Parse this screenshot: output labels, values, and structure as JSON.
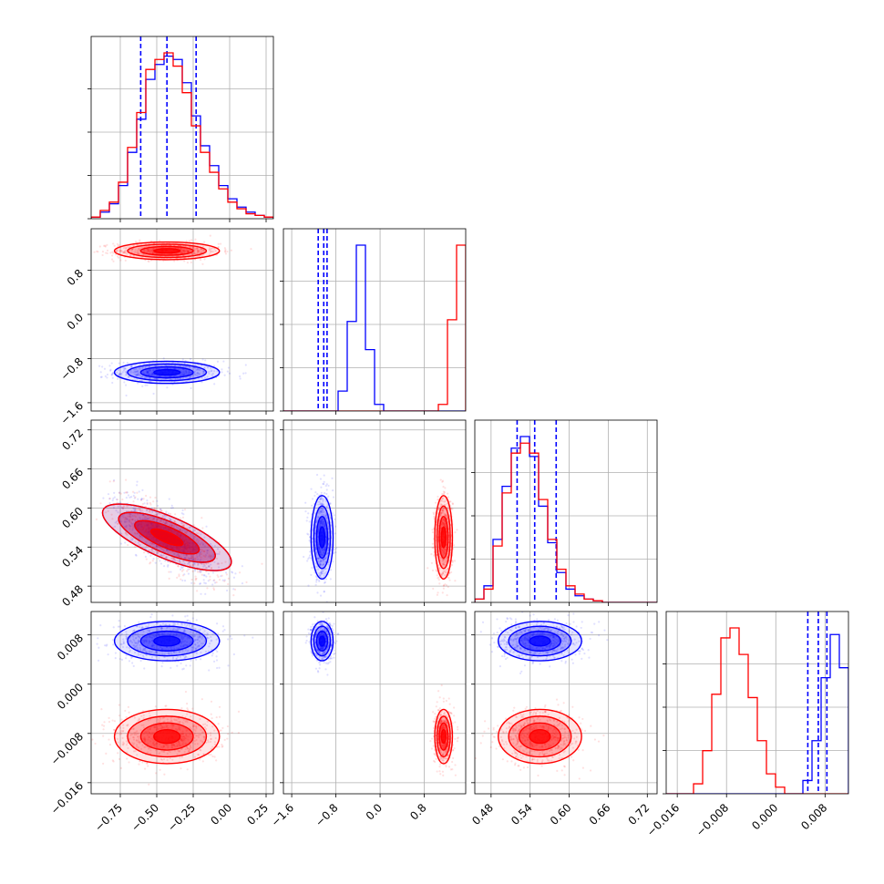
{
  "chart_data": {
    "type": "corner",
    "params": [
      {
        "range": [
          -0.95,
          0.3
        ],
        "ticks": [
          -0.75,
          -0.5,
          -0.25,
          0.0,
          0.25
        ],
        "tick_labels": [
          "−0.75",
          "−0.50",
          "−0.25",
          "0.00",
          "0.25"
        ]
      },
      {
        "range": [
          -1.75,
          1.55
        ],
        "ticks": [
          -1.6,
          -0.8,
          0.0,
          0.8
        ],
        "tick_labels": [
          "−1.6",
          "−0.8",
          "0.0",
          "0.8"
        ]
      },
      {
        "range": [
          0.455,
          0.735
        ],
        "ticks": [
          0.48,
          0.54,
          0.6,
          0.66,
          0.72
        ],
        "tick_labels": [
          "0.48",
          "0.54",
          "0.60",
          "0.66",
          "0.72"
        ]
      },
      {
        "range": [
          -0.0178,
          0.0118
        ],
        "ticks": [
          -0.016,
          -0.008,
          0.0,
          0.008
        ],
        "tick_labels": [
          "−0.016",
          "−0.008",
          "0.000",
          "0.008"
        ]
      }
    ],
    "series": [
      {
        "color": "#0000ff",
        "means": [
          -0.43,
          -1.05,
          0.555,
          0.007
        ],
        "sigmas": [
          0.18,
          0.1,
          0.032,
          0.0016
        ],
        "quantiles": [
          [
            -0.61,
            -0.43,
            -0.23
          ],
          [
            -1.12,
            -1.02,
            -0.96
          ],
          [
            0.52,
            0.547,
            0.58
          ],
          [
            0.0052,
            0.0069,
            0.0083
          ]
        ],
        "hist": [
          [
            1,
            4,
            9,
            20,
            40,
            60,
            84,
            93,
            98,
            96,
            82,
            62,
            44,
            32,
            20,
            12,
            7,
            4,
            2,
            1
          ],
          [
            0,
            0,
            0,
            0,
            0,
            0,
            12,
            54,
            100,
            37,
            4,
            0,
            0,
            0,
            0,
            0,
            0,
            0,
            0,
            0
          ],
          [
            2,
            10,
            38,
            70,
            93,
            100,
            88,
            58,
            36,
            18,
            8,
            4,
            2,
            1,
            0,
            0,
            0,
            0,
            0,
            0
          ],
          [
            0,
            0,
            0,
            0,
            0,
            0,
            0,
            0,
            0,
            0,
            0,
            0,
            0,
            0,
            0,
            8,
            32,
            70,
            96,
            76
          ]
        ]
      },
      {
        "color": "#ff0000",
        "means": [
          -0.43,
          1.15,
          0.555,
          -0.0085
        ],
        "sigmas": [
          0.18,
          0.08,
          0.032,
          0.0022
        ],
        "quantiles": null,
        "hist": [
          [
            1,
            5,
            10,
            22,
            43,
            64,
            90,
            96,
            100,
            92,
            76,
            56,
            40,
            28,
            18,
            10,
            6,
            3,
            2,
            1
          ],
          [
            0,
            0,
            0,
            0,
            0,
            0,
            0,
            0,
            0,
            0,
            0,
            0,
            0,
            0,
            0,
            0,
            0,
            4,
            55,
            100
          ],
          [
            2,
            8,
            34,
            66,
            90,
            96,
            90,
            62,
            38,
            20,
            10,
            5,
            2,
            1,
            0,
            0,
            0,
            0,
            0,
            0
          ],
          [
            0,
            0,
            0,
            6,
            26,
            60,
            94,
            100,
            84,
            58,
            32,
            12,
            4,
            0,
            0,
            0,
            0,
            0,
            0,
            0
          ]
        ]
      }
    ],
    "correlations": {
      "0-2": -0.75
    },
    "grid": true
  }
}
